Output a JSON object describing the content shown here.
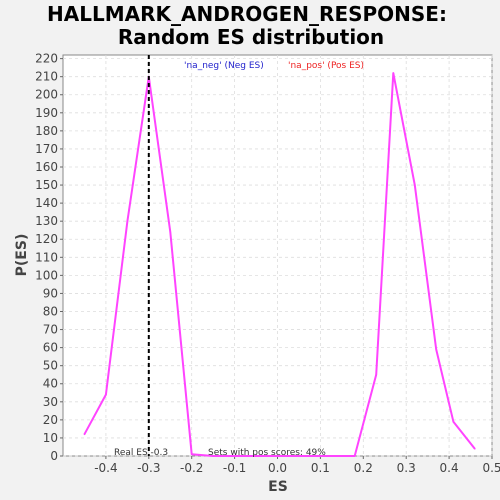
{
  "chart_data": {
    "type": "line",
    "title_line1": "HALLMARK_ANDROGEN_RESPONSE:",
    "title_line2": "Random ES distribution",
    "xlabel": "ES",
    "ylabel": "P(ES)",
    "xlim": [
      -0.5,
      0.5
    ],
    "ylim": [
      0,
      222
    ],
    "xticks": [
      "-0.4",
      "-0.3",
      "-0.2",
      "-0.1",
      "0.0",
      "0.1",
      "0.2",
      "0.3",
      "0.4",
      "0.5"
    ],
    "yticks": [
      "0",
      "10",
      "20",
      "30",
      "40",
      "50",
      "60",
      "70",
      "80",
      "90",
      "100",
      "110",
      "120",
      "130",
      "140",
      "150",
      "160",
      "170",
      "180",
      "190",
      "200",
      "210",
      "220"
    ],
    "grid": true,
    "line_color": "#ff44ff",
    "series": [
      {
        "x": [
          -0.45,
          -0.4,
          -0.35,
          -0.3,
          -0.25,
          -0.2,
          -0.15,
          -0.1,
          -0.05,
          0.0,
          0.05,
          0.1,
          0.15,
          0.18,
          0.23,
          0.27,
          0.32,
          0.37,
          0.41,
          0.46
        ],
        "y": [
          12,
          34,
          130,
          210,
          124,
          1,
          0,
          0,
          0,
          0,
          0,
          0,
          0,
          0,
          45,
          212,
          150,
          59,
          19,
          4
        ]
      }
    ],
    "real_es": -0.3,
    "real_es_color": "#000000",
    "legend": [
      {
        "label": "'na_neg' (Neg ES)",
        "color": "#2222cc"
      },
      {
        "label": "'na_pos' (Pos ES)",
        "color": "#ee2222"
      }
    ],
    "legend_placement": "top",
    "annotations": {
      "real_es": "Real ES -0.3",
      "pos_scores": "Sets with pos scores: 49%"
    }
  }
}
